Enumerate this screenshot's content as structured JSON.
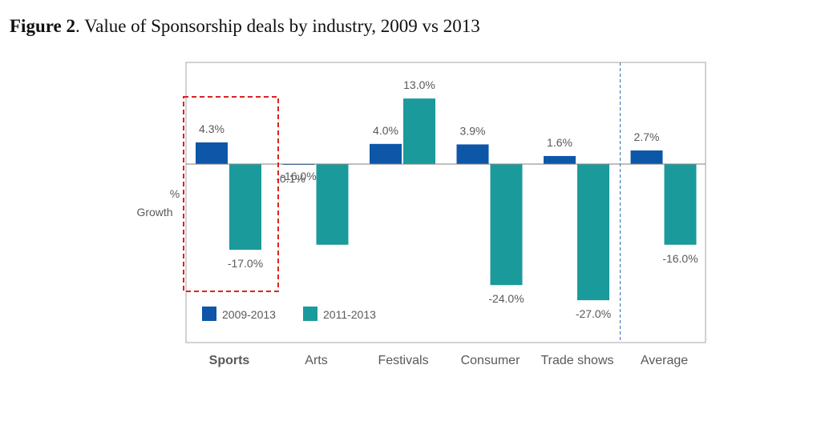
{
  "figure": {
    "prefix": "Figure 2",
    "title": ". Value of Sponsorship deals by industry, 2009 vs 2013"
  },
  "chart_data": {
    "type": "bar",
    "title": "Figure 2. Value of Sponsorship deals by industry, 2009 vs 2013",
    "ylabel_line1": "%",
    "ylabel_line2": "Growth",
    "categories": [
      "Sports",
      "Arts",
      "Festivals",
      "Consumer",
      "Trade shows",
      "Average"
    ],
    "series": [
      {
        "name": "2009-2013",
        "color": "#0e56a8",
        "values": [
          4.3,
          -0.1,
          4.0,
          3.9,
          1.6,
          2.7
        ],
        "labels": [
          "4.3%",
          "-0.1%",
          "4.0%",
          "3.9%",
          "1.6%",
          "2.7%"
        ]
      },
      {
        "name": "2011-2013",
        "color": "#1b9a9c",
        "values": [
          -17.0,
          -16.0,
          13.0,
          -24.0,
          -27.0,
          -16.0
        ],
        "labels": [
          "-17.0%",
          "-16.0%",
          "13.0%",
          "-24.0%",
          "-27.0%",
          "-16.0%"
        ]
      }
    ],
    "highlighted_category": "Sports",
    "legend_position": "bottom-left",
    "grid": false
  }
}
